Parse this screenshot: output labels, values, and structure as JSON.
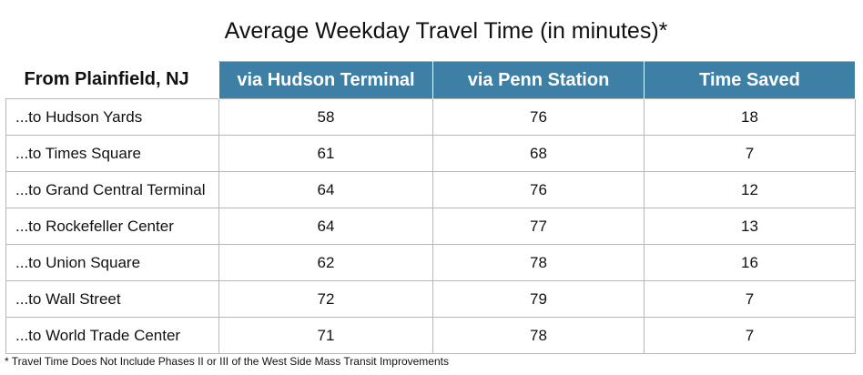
{
  "chart_data": {
    "type": "table",
    "title": "Average Weekday Travel Time (in minutes)*",
    "row_header_label": "From Plainfield, NJ",
    "columns": [
      "via Hudson Terminal",
      "via Penn Station",
      "Time Saved"
    ],
    "rows": [
      {
        "label": "...to Hudson Yards",
        "values": [
          "58",
          "76",
          "18"
        ]
      },
      {
        "label": "...to Times Square",
        "values": [
          "61",
          "68",
          "7"
        ]
      },
      {
        "label": "...to Grand Central Terminal",
        "values": [
          "64",
          "76",
          "12"
        ]
      },
      {
        "label": "...to Rockefeller Center",
        "values": [
          "64",
          "77",
          "13"
        ]
      },
      {
        "label": "...to Union Square",
        "values": [
          "62",
          "78",
          "16"
        ]
      },
      {
        "label": "...to Wall Street",
        "values": [
          "72",
          "79",
          "7"
        ]
      },
      {
        "label": "...to World Trade Center",
        "values": [
          "71",
          "78",
          "7"
        ]
      }
    ],
    "footnote": "* Travel Time Does Not Include Phases II or III of the West Side Mass Transit Improvements",
    "header_color": "#3e7fa5",
    "header_text_color": "#ffffff",
    "grid_color": "#b8b8b8"
  }
}
